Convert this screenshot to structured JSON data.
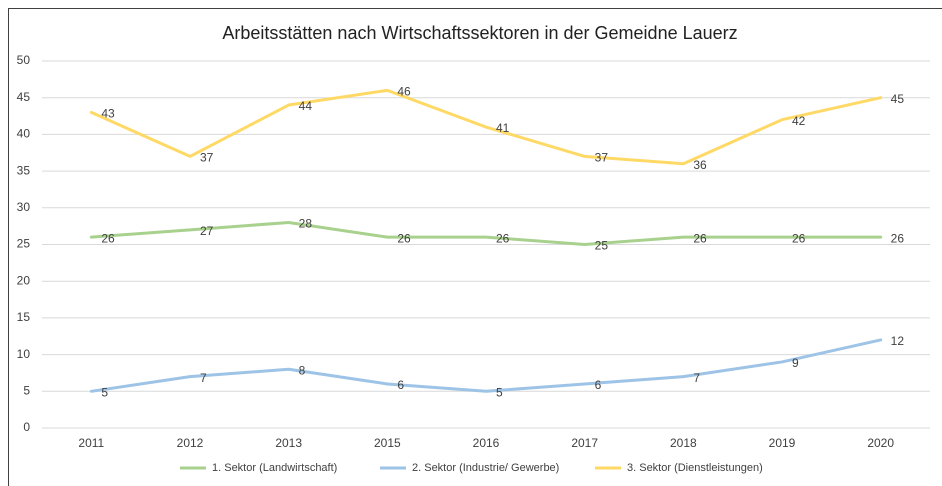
{
  "chart_data": {
    "type": "line",
    "title": "Arbeitsstätten nach Wirtschaftssektoren in der Gemeidne Lauerz",
    "categories": [
      "2011",
      "2012",
      "2013",
      "2015",
      "2016",
      "2017",
      "2018",
      "2019",
      "2020"
    ],
    "series": [
      {
        "name": "1. Sektor (Landwirtschaft)",
        "color": "#a9d18e",
        "values": [
          26,
          27,
          28,
          26,
          26,
          25,
          26,
          26,
          26
        ]
      },
      {
        "name": "2. Sektor (Industrie/ Gewerbe)",
        "color": "#9dc3e6",
        "values": [
          5,
          7,
          8,
          6,
          5,
          6,
          7,
          9,
          12
        ]
      },
      {
        "name": "3. Sektor (Dienstleistungen)",
        "color": "#ffd966",
        "values": [
          43,
          37,
          44,
          46,
          41,
          37,
          36,
          42,
          45
        ]
      }
    ],
    "ylim": [
      0,
      50
    ],
    "yticks": [
      0,
      5,
      10,
      15,
      20,
      25,
      30,
      35,
      40,
      45,
      50
    ],
    "grid": true,
    "legend": "bottom"
  }
}
